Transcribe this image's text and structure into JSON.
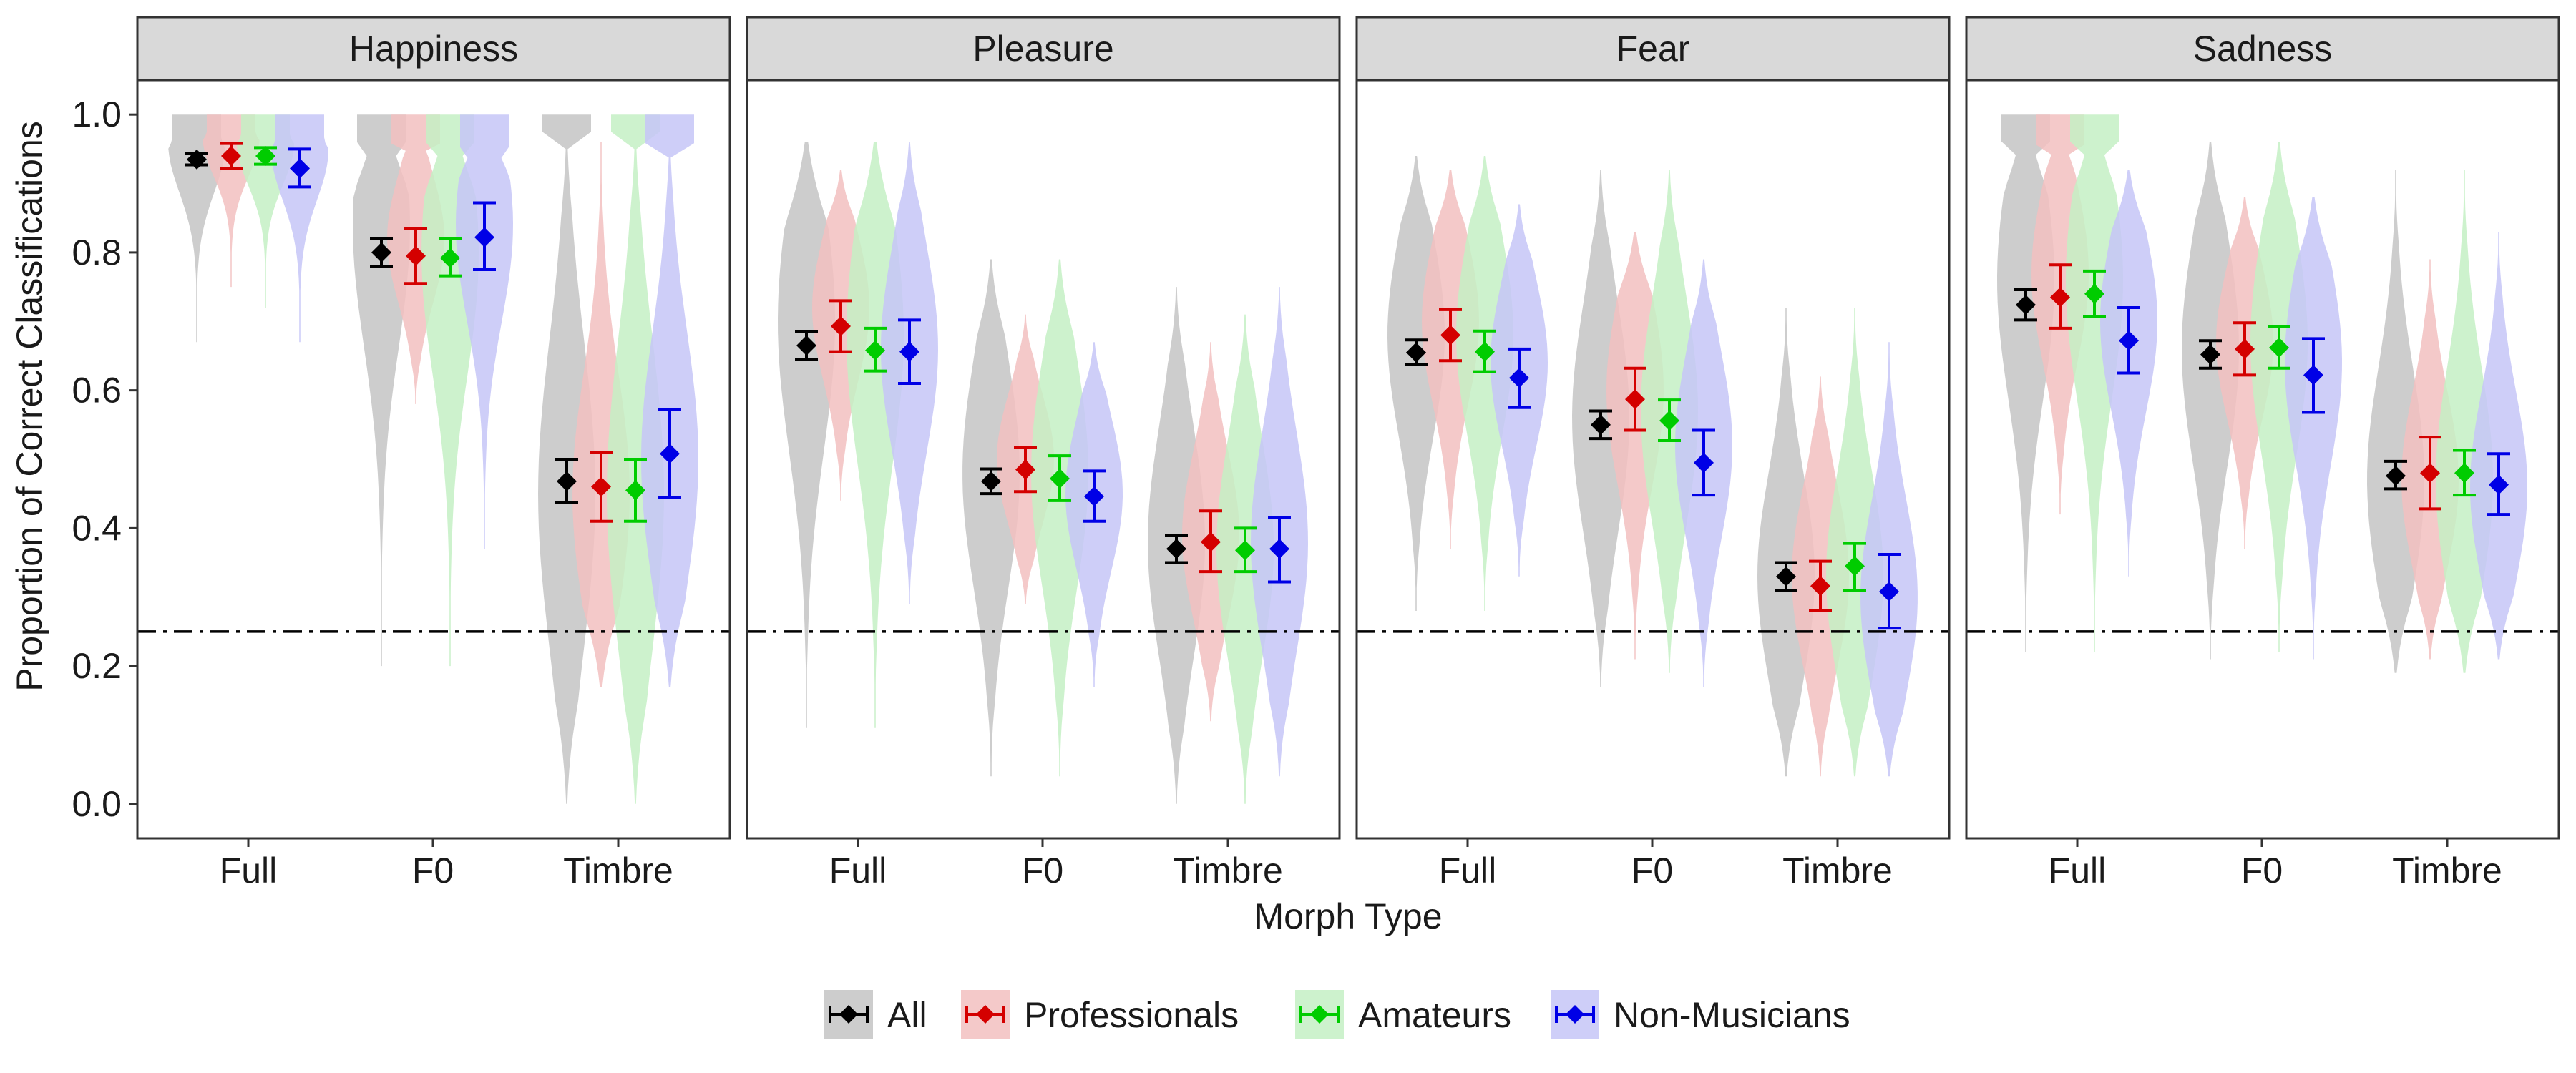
{
  "chart_data": {
    "type": "violin",
    "xlabel": "Morph Type",
    "ylabel": "Proportion of Correct Classifications",
    "ylim": [
      -0.05,
      1.05
    ],
    "yticks": [
      "0.0",
      "0.2",
      "0.4",
      "0.6",
      "0.8",
      "1.0"
    ],
    "categories": [
      "Full",
      "F0",
      "Timbre"
    ],
    "reference_line": {
      "y": 0.25,
      "style": "dashdot"
    },
    "legend_position": "bottom",
    "series": [
      {
        "name": "All",
        "color": "#000000",
        "fill": "#c4c4c4"
      },
      {
        "name": "Professionals",
        "color": "#d40000",
        "fill": "#f2c0c0"
      },
      {
        "name": "Amateurs",
        "color": "#00cc00",
        "fill": "#c4f0c4"
      },
      {
        "name": "Non-Musicians",
        "color": "#0000e6",
        "fill": "#c6c6f7"
      }
    ],
    "panels": [
      {
        "title": "Happiness",
        "groups": [
          {
            "category": "Full",
            "series": [
              {
                "mean": 0.935,
                "lo": 0.927,
                "hi": 0.944,
                "min": 0.67,
                "max": 1.0,
                "mode": 0.96
              },
              {
                "mean": 0.94,
                "lo": 0.922,
                "hi": 0.958,
                "min": 0.75,
                "max": 1.0,
                "mode": 0.97
              },
              {
                "mean": 0.94,
                "lo": 0.928,
                "hi": 0.952,
                "min": 0.72,
                "max": 1.0,
                "mode": 0.96
              },
              {
                "mean": 0.922,
                "lo": 0.895,
                "hi": 0.95,
                "min": 0.67,
                "max": 1.0,
                "mode": 0.95
              }
            ]
          },
          {
            "category": "F0",
            "series": [
              {
                "mean": 0.8,
                "lo": 0.78,
                "hi": 0.82,
                "min": 0.2,
                "max": 1.0,
                "mode": 0.84
              },
              {
                "mean": 0.795,
                "lo": 0.755,
                "hi": 0.835,
                "min": 0.58,
                "max": 1.0,
                "mode": 0.82
              },
              {
                "mean": 0.792,
                "lo": 0.766,
                "hi": 0.82,
                "min": 0.2,
                "max": 1.0,
                "mode": 0.8
              },
              {
                "mean": 0.822,
                "lo": 0.775,
                "hi": 0.872,
                "min": 0.37,
                "max": 1.0,
                "mode": 0.84
              }
            ]
          },
          {
            "category": "Timbre",
            "series": [
              {
                "mean": 0.468,
                "lo": 0.437,
                "hi": 0.5,
                "min": 0.0,
                "max": 1.0,
                "mode": 0.45
              },
              {
                "mean": 0.46,
                "lo": 0.41,
                "hi": 0.51,
                "min": 0.17,
                "max": 0.96,
                "mode": 0.45
              },
              {
                "mean": 0.455,
                "lo": 0.41,
                "hi": 0.5,
                "min": 0.0,
                "max": 1.0,
                "mode": 0.45
              },
              {
                "mean": 0.508,
                "lo": 0.445,
                "hi": 0.572,
                "min": 0.17,
                "max": 1.0,
                "mode": 0.5
              }
            ]
          }
        ]
      },
      {
        "title": "Pleasure",
        "groups": [
          {
            "category": "Full",
            "series": [
              {
                "mean": 0.665,
                "lo": 0.645,
                "hi": 0.685,
                "min": 0.11,
                "max": 0.96,
                "mode": 0.7
              },
              {
                "mean": 0.693,
                "lo": 0.656,
                "hi": 0.73,
                "min": 0.44,
                "max": 0.92,
                "mode": 0.72
              },
              {
                "mean": 0.658,
                "lo": 0.628,
                "hi": 0.69,
                "min": 0.11,
                "max": 0.96,
                "mode": 0.68
              },
              {
                "mean": 0.656,
                "lo": 0.61,
                "hi": 0.702,
                "min": 0.29,
                "max": 0.96,
                "mode": 0.66
              }
            ]
          },
          {
            "category": "F0",
            "series": [
              {
                "mean": 0.468,
                "lo": 0.45,
                "hi": 0.486,
                "min": 0.04,
                "max": 0.79,
                "mode": 0.48
              },
              {
                "mean": 0.485,
                "lo": 0.453,
                "hi": 0.517,
                "min": 0.29,
                "max": 0.71,
                "mode": 0.5
              },
              {
                "mean": 0.472,
                "lo": 0.44,
                "hi": 0.505,
                "min": 0.04,
                "max": 0.79,
                "mode": 0.48
              },
              {
                "mean": 0.446,
                "lo": 0.41,
                "hi": 0.483,
                "min": 0.17,
                "max": 0.67,
                "mode": 0.45
              }
            ]
          },
          {
            "category": "Timbre",
            "series": [
              {
                "mean": 0.37,
                "lo": 0.35,
                "hi": 0.39,
                "min": 0.0,
                "max": 0.75,
                "mode": 0.38
              },
              {
                "mean": 0.38,
                "lo": 0.337,
                "hi": 0.425,
                "min": 0.12,
                "max": 0.67,
                "mode": 0.39
              },
              {
                "mean": 0.368,
                "lo": 0.337,
                "hi": 0.4,
                "min": 0.0,
                "max": 0.71,
                "mode": 0.37
              },
              {
                "mean": 0.37,
                "lo": 0.322,
                "hi": 0.415,
                "min": 0.04,
                "max": 0.75,
                "mode": 0.38
              }
            ]
          }
        ]
      },
      {
        "title": "Fear",
        "groups": [
          {
            "category": "Full",
            "series": [
              {
                "mean": 0.655,
                "lo": 0.637,
                "hi": 0.673,
                "min": 0.28,
                "max": 0.94,
                "mode": 0.68
              },
              {
                "mean": 0.68,
                "lo": 0.643,
                "hi": 0.717,
                "min": 0.37,
                "max": 0.92,
                "mode": 0.7
              },
              {
                "mean": 0.656,
                "lo": 0.627,
                "hi": 0.686,
                "min": 0.28,
                "max": 0.94,
                "mode": 0.68
              },
              {
                "mean": 0.618,
                "lo": 0.575,
                "hi": 0.66,
                "min": 0.33,
                "max": 0.87,
                "mode": 0.64
              }
            ]
          },
          {
            "category": "F0",
            "series": [
              {
                "mean": 0.55,
                "lo": 0.53,
                "hi": 0.57,
                "min": 0.17,
                "max": 0.92,
                "mode": 0.56
              },
              {
                "mean": 0.587,
                "lo": 0.542,
                "hi": 0.632,
                "min": 0.21,
                "max": 0.83,
                "mode": 0.6
              },
              {
                "mean": 0.556,
                "lo": 0.527,
                "hi": 0.586,
                "min": 0.19,
                "max": 0.92,
                "mode": 0.57
              },
              {
                "mean": 0.495,
                "lo": 0.448,
                "hi": 0.542,
                "min": 0.17,
                "max": 0.79,
                "mode": 0.52
              }
            ]
          },
          {
            "category": "Timbre",
            "series": [
              {
                "mean": 0.33,
                "lo": 0.31,
                "hi": 0.35,
                "min": 0.04,
                "max": 0.72,
                "mode": 0.33
              },
              {
                "mean": 0.316,
                "lo": 0.28,
                "hi": 0.352,
                "min": 0.04,
                "max": 0.62,
                "mode": 0.33
              },
              {
                "mean": 0.345,
                "lo": 0.31,
                "hi": 0.378,
                "min": 0.04,
                "max": 0.72,
                "mode": 0.33
              },
              {
                "mean": 0.308,
                "lo": 0.255,
                "hi": 0.362,
                "min": 0.04,
                "max": 0.67,
                "mode": 0.3
              }
            ]
          }
        ]
      },
      {
        "title": "Sadness",
        "groups": [
          {
            "category": "Full",
            "series": [
              {
                "mean": 0.724,
                "lo": 0.702,
                "hi": 0.746,
                "min": 0.22,
                "max": 1.0,
                "mode": 0.76
              },
              {
                "mean": 0.735,
                "lo": 0.69,
                "hi": 0.782,
                "min": 0.42,
                "max": 1.0,
                "mode": 0.77
              },
              {
                "mean": 0.74,
                "lo": 0.707,
                "hi": 0.773,
                "min": 0.22,
                "max": 1.0,
                "mode": 0.76
              },
              {
                "mean": 0.672,
                "lo": 0.625,
                "hi": 0.72,
                "min": 0.33,
                "max": 0.92,
                "mode": 0.7
              }
            ]
          },
          {
            "category": "F0",
            "series": [
              {
                "mean": 0.652,
                "lo": 0.632,
                "hi": 0.672,
                "min": 0.21,
                "max": 0.96,
                "mode": 0.66
              },
              {
                "mean": 0.66,
                "lo": 0.622,
                "hi": 0.698,
                "min": 0.37,
                "max": 0.88,
                "mode": 0.67
              },
              {
                "mean": 0.662,
                "lo": 0.632,
                "hi": 0.692,
                "min": 0.22,
                "max": 0.96,
                "mode": 0.67
              },
              {
                "mean": 0.622,
                "lo": 0.568,
                "hi": 0.675,
                "min": 0.21,
                "max": 0.88,
                "mode": 0.64
              }
            ]
          },
          {
            "category": "Timbre",
            "series": [
              {
                "mean": 0.476,
                "lo": 0.457,
                "hi": 0.497,
                "min": 0.19,
                "max": 0.92,
                "mode": 0.47
              },
              {
                "mean": 0.48,
                "lo": 0.428,
                "hi": 0.532,
                "min": 0.21,
                "max": 0.79,
                "mode": 0.47
              },
              {
                "mean": 0.48,
                "lo": 0.448,
                "hi": 0.513,
                "min": 0.19,
                "max": 0.92,
                "mode": 0.47
              },
              {
                "mean": 0.463,
                "lo": 0.42,
                "hi": 0.508,
                "min": 0.21,
                "max": 0.83,
                "mode": 0.46
              }
            ]
          }
        ]
      }
    ]
  }
}
